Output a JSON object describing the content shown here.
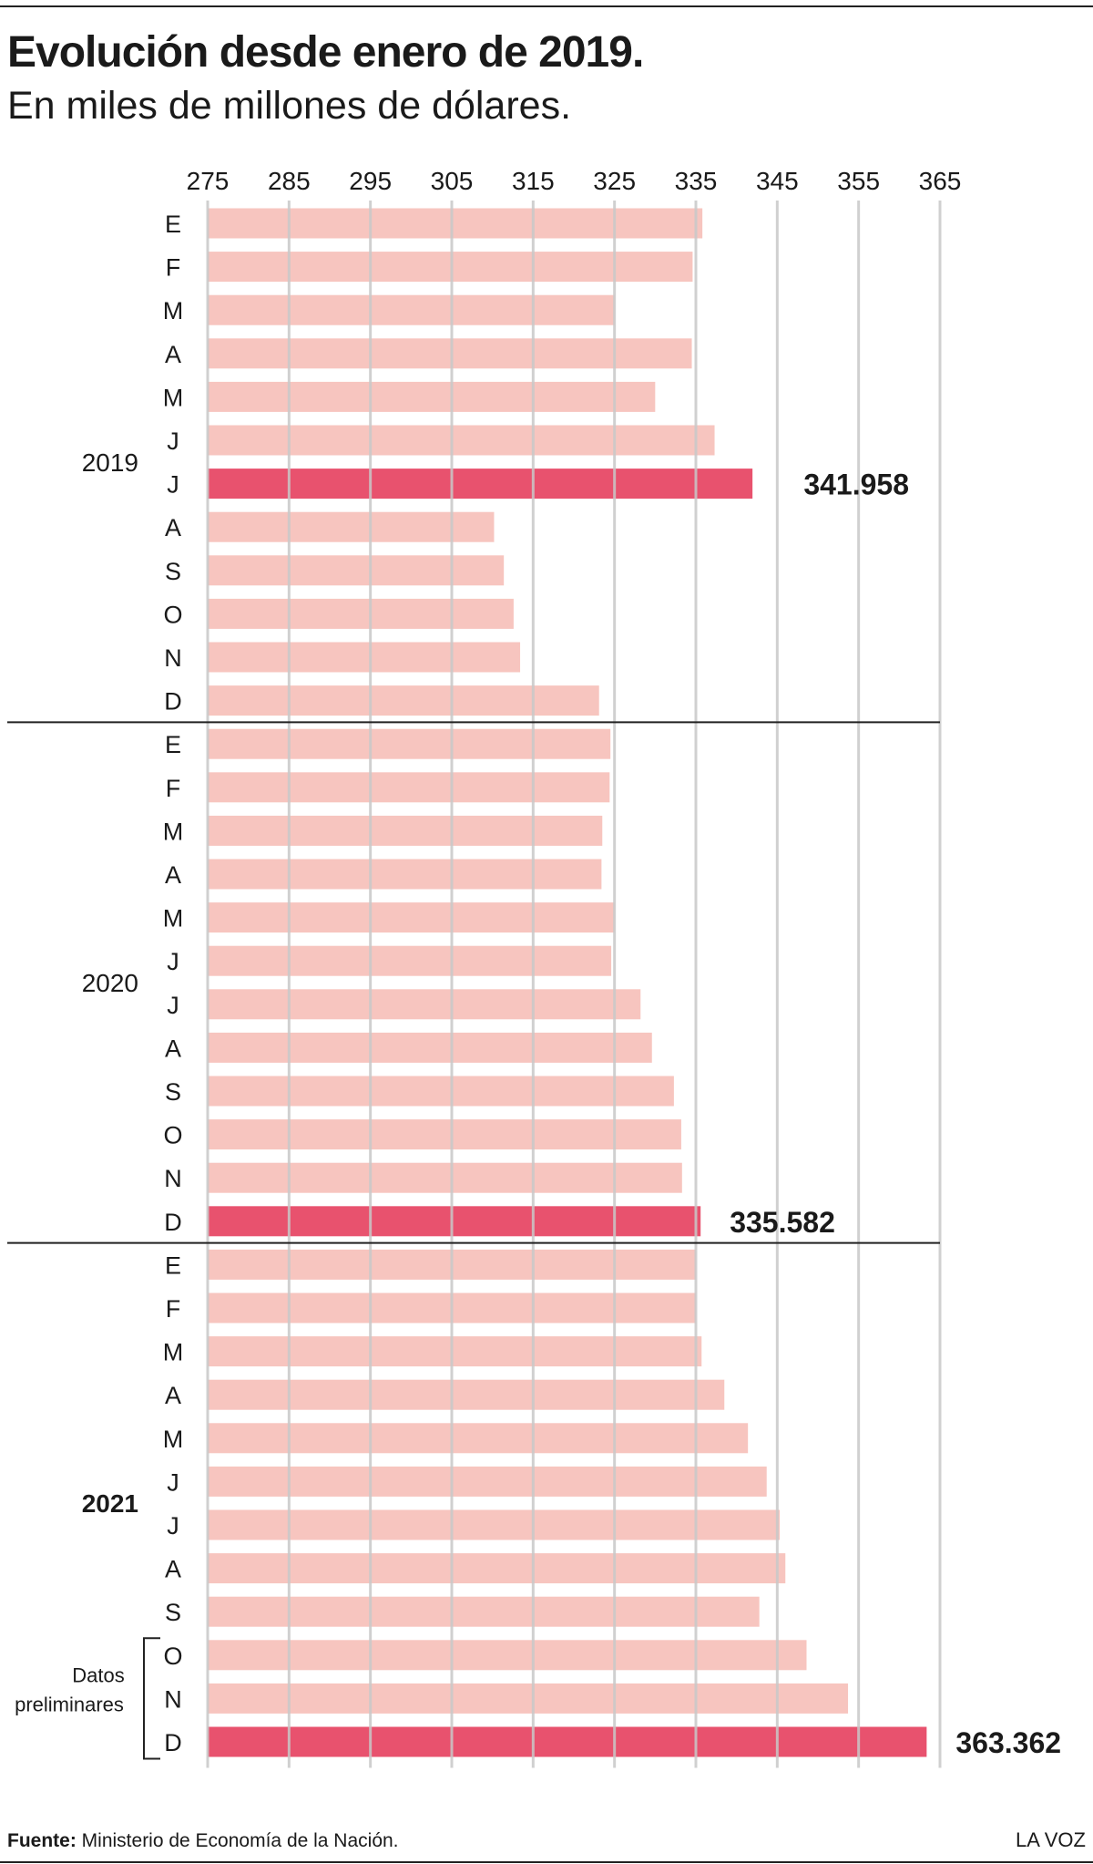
{
  "title": "Evolución desde enero de 2019.",
  "subtitle": "En miles de millones de dólares.",
  "footer": {
    "source_label": "Fuente:",
    "source_text": "Ministerio de Economía de la Nación.",
    "brand": "LA VOZ"
  },
  "colors": {
    "bar": "#f7c5bf",
    "highlight": "#e8526e",
    "gridline": "#c8c8c8",
    "text": "#1a1a1a"
  },
  "chart_data": {
    "type": "bar",
    "orientation": "horizontal",
    "xlim": [
      275,
      365
    ],
    "ticks": [
      "275",
      "285",
      "295",
      "305",
      "315",
      "325",
      "335",
      "345",
      "355",
      "365"
    ],
    "grid": true,
    "groups": [
      {
        "year": "2019",
        "bold": false,
        "months": [
          "E",
          "F",
          "M",
          "A",
          "M",
          "J",
          "J",
          "A",
          "S",
          "O",
          "N",
          "D"
        ],
        "values": [
          335.8,
          334.6,
          325.0,
          334.5,
          330.0,
          337.3,
          341.958,
          310.2,
          311.4,
          312.6,
          313.4,
          323.1
        ]
      },
      {
        "year": "2020",
        "bold": false,
        "months": [
          "E",
          "F",
          "M",
          "A",
          "M",
          "J",
          "J",
          "A",
          "S",
          "O",
          "N",
          "D"
        ],
        "values": [
          324.5,
          324.4,
          323.5,
          323.4,
          325.0,
          324.6,
          328.2,
          329.6,
          332.3,
          333.2,
          333.3,
          335.582
        ]
      },
      {
        "year": "2021",
        "bold": true,
        "months": [
          "E",
          "F",
          "M",
          "A",
          "M",
          "J",
          "J",
          "A",
          "S",
          "O",
          "N",
          "D"
        ],
        "values": [
          335.0,
          335.0,
          335.7,
          338.5,
          341.4,
          343.7,
          345.3,
          346.0,
          342.8,
          348.6,
          353.7,
          363.362
        ]
      }
    ],
    "highlights": [
      {
        "group": 0,
        "month_index": 6,
        "label": "341.958"
      },
      {
        "group": 1,
        "month_index": 11,
        "label": "335.582"
      },
      {
        "group": 2,
        "month_index": 11,
        "label": "363.362"
      }
    ],
    "annotation": {
      "text_line1": "Datos",
      "text_line2": "preliminares",
      "from_group": 2,
      "from_index": 9,
      "to_index": 11
    }
  }
}
